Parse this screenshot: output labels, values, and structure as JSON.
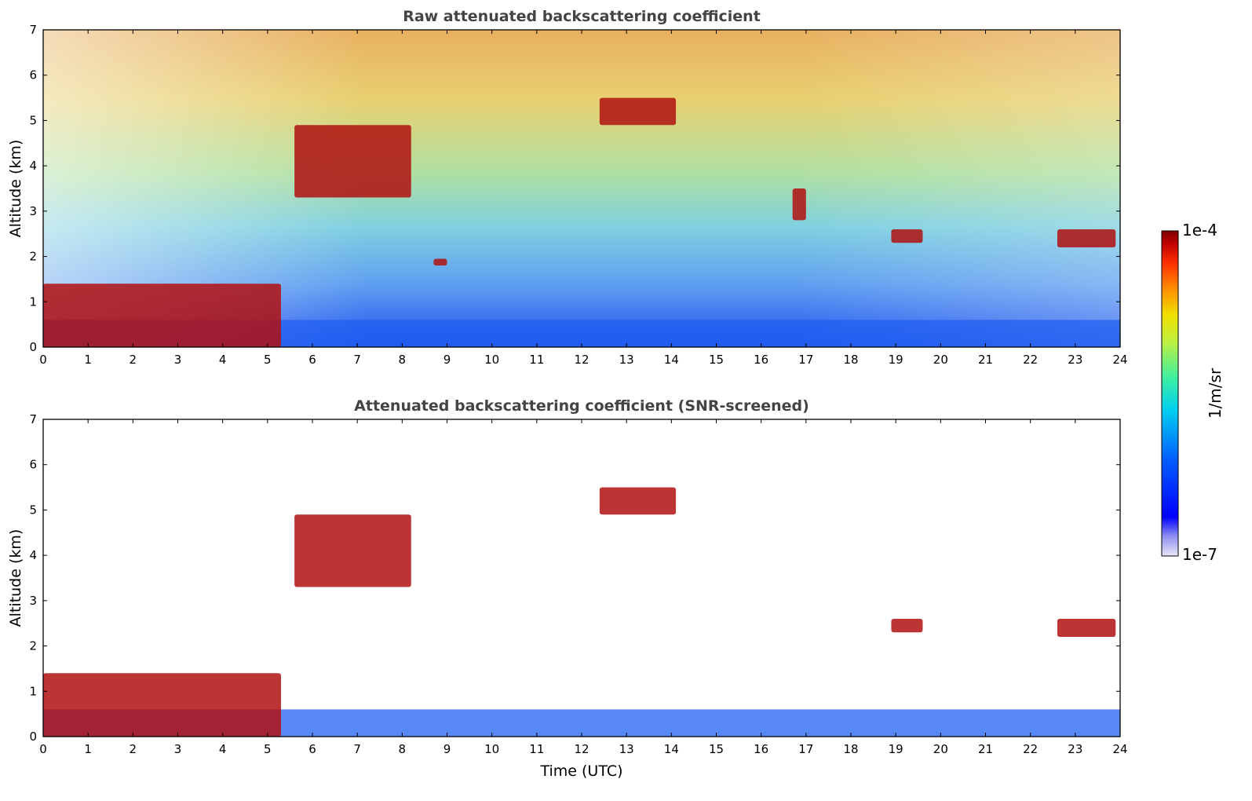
{
  "chart_data": [
    {
      "type": "heatmap",
      "title": "Raw attenuated backscattering coefficient",
      "xlabel": "",
      "ylabel": "Altitude (km)",
      "xlim": [
        0,
        24
      ],
      "ylim": [
        0,
        7
      ],
      "xticks": [
        "0",
        "1",
        "2",
        "3",
        "4",
        "5",
        "6",
        "7",
        "8",
        "9",
        "10",
        "11",
        "12",
        "13",
        "14",
        "15",
        "16",
        "17",
        "18",
        "19",
        "20",
        "21",
        "22",
        "23",
        "24"
      ],
      "yticks": [
        "0",
        "1",
        "2",
        "3",
        "4",
        "5",
        "6",
        "7"
      ],
      "features": [
        {
          "name": "boundary layer aerosol",
          "x": [
            0,
            24
          ],
          "y": [
            0,
            0.6
          ],
          "level": "low"
        },
        {
          "name": "low cloud",
          "x": [
            0,
            5.3
          ],
          "y": [
            0,
            1.4
          ],
          "level": "high"
        },
        {
          "name": "rising cloud layer",
          "x": [
            5.6,
            8.2
          ],
          "y": [
            3.3,
            4.9
          ],
          "level": "high"
        },
        {
          "name": "cloud",
          "x": [
            12.4,
            14.1
          ],
          "y": [
            4.9,
            5.5
          ],
          "level": "high"
        },
        {
          "name": "cloud",
          "x": [
            18.9,
            19.6
          ],
          "y": [
            2.3,
            2.6
          ],
          "level": "high"
        },
        {
          "name": "cloud",
          "x": [
            22.6,
            23.9
          ],
          "y": [
            2.2,
            2.6
          ],
          "level": "high"
        },
        {
          "name": "cloud",
          "x": [
            16.7,
            17.0
          ],
          "y": [
            2.8,
            3.5
          ],
          "level": "high"
        },
        {
          "name": "cloud",
          "x": [
            8.7,
            9.0
          ],
          "y": [
            1.8,
            1.95
          ],
          "level": "high"
        }
      ]
    },
    {
      "type": "heatmap",
      "title": "Attenuated backscattering coefficient (SNR-screened)",
      "xlabel": "Time (UTC)",
      "ylabel": "Altitude (km)",
      "xlim": [
        0,
        24
      ],
      "ylim": [
        0,
        7
      ],
      "xticks": [
        "0",
        "1",
        "2",
        "3",
        "4",
        "5",
        "6",
        "7",
        "8",
        "9",
        "10",
        "11",
        "12",
        "13",
        "14",
        "15",
        "16",
        "17",
        "18",
        "19",
        "20",
        "21",
        "22",
        "23",
        "24"
      ],
      "yticks": [
        "0",
        "1",
        "2",
        "3",
        "4",
        "5",
        "6",
        "7"
      ],
      "features": [
        {
          "name": "boundary layer aerosol",
          "x": [
            0,
            24
          ],
          "y": [
            0,
            0.6
          ],
          "level": "low"
        },
        {
          "name": "low cloud",
          "x": [
            0,
            5.3
          ],
          "y": [
            0,
            1.4
          ],
          "level": "high"
        },
        {
          "name": "rising cloud layer",
          "x": [
            5.6,
            8.2
          ],
          "y": [
            3.3,
            4.9
          ],
          "level": "high"
        },
        {
          "name": "cloud",
          "x": [
            12.4,
            14.1
          ],
          "y": [
            4.9,
            5.5
          ],
          "level": "high"
        },
        {
          "name": "cloud",
          "x": [
            18.9,
            19.6
          ],
          "y": [
            2.3,
            2.6
          ],
          "level": "high"
        },
        {
          "name": "cloud",
          "x": [
            22.6,
            23.9
          ],
          "y": [
            2.2,
            2.6
          ],
          "level": "high"
        }
      ]
    }
  ],
  "colorbar": {
    "label": "1/m/sr",
    "max_label": "1e-4",
    "min_label": "1e-7",
    "colors": [
      "#e8e8f8",
      "#b4b4f0",
      "#7070ee",
      "#0000ff",
      "#0050ff",
      "#00a0ff",
      "#00e0f0",
      "#40f0b0",
      "#a0f050",
      "#f0f000",
      "#ffb000",
      "#ff5000",
      "#e00000",
      "#800000"
    ]
  }
}
